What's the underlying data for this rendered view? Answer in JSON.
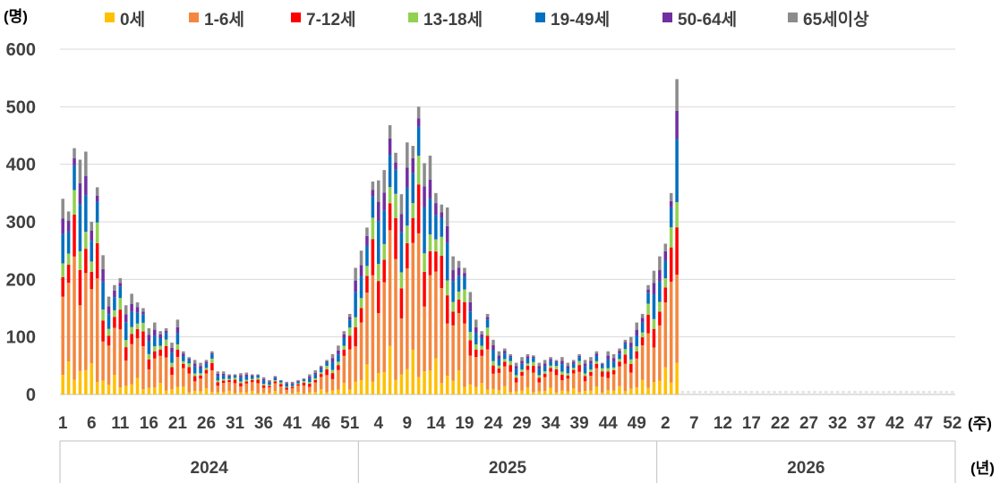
{
  "chart_data": {
    "type": "bar",
    "stacked": true,
    "y_unit_label": "(명)",
    "x_unit_label": "(주)",
    "year_unit_label": "(년)",
    "ylim": [
      0,
      600
    ],
    "yticks": [
      0,
      100,
      200,
      300,
      400,
      500,
      600
    ],
    "grid": true,
    "legend_position": "top",
    "series": [
      {
        "name": "0세",
        "color": "#FFC000"
      },
      {
        "name": "1-6세",
        "color": "#F4873F"
      },
      {
        "name": "7-12세",
        "color": "#FF0000"
      },
      {
        "name": "13-18세",
        "color": "#92D050"
      },
      {
        "name": "19-49세",
        "color": "#0070C0"
      },
      {
        "name": "50-64세",
        "color": "#7030A0"
      },
      {
        "name": "65세이상",
        "color": "#8C8C8C"
      }
    ],
    "years": [
      {
        "label": "2024",
        "weeks": 52
      },
      {
        "label": "2025",
        "weeks": 52
      },
      {
        "label": "2026",
        "weeks": 52
      }
    ],
    "x_tick_labels": [
      "1",
      "6",
      "11",
      "16",
      "21",
      "26",
      "31",
      "36",
      "41",
      "46",
      "51",
      "4",
      "9",
      "14",
      "19",
      "24",
      "29",
      "34",
      "39",
      "44",
      "49",
      "2",
      "7",
      "12",
      "17",
      "22",
      "27",
      "32",
      "37",
      "42",
      "47",
      "52"
    ],
    "totals_2024": [
      340,
      318,
      428,
      408,
      422,
      300,
      360,
      242,
      170,
      190,
      202,
      155,
      175,
      160,
      150,
      115,
      125,
      110,
      115,
      90,
      130,
      75,
      65,
      60,
      55,
      60,
      75,
      40,
      40,
      35,
      35,
      37,
      38,
      35,
      35,
      30,
      25,
      32,
      25,
      22,
      22,
      25,
      28,
      35,
      42,
      50,
      60,
      70,
      85,
      110,
      140,
      220
    ],
    "totals_2025": [
      250,
      290,
      370,
      372,
      390,
      468,
      420,
      348,
      438,
      432,
      500,
      402,
      415,
      350,
      330,
      325,
      240,
      232,
      220,
      178,
      130,
      110,
      140,
      95,
      75,
      80,
      70,
      55,
      65,
      70,
      68,
      55,
      60,
      65,
      60,
      65,
      55,
      60,
      70,
      60,
      65,
      75,
      55,
      75,
      70,
      80,
      95,
      100,
      125,
      140,
      190,
      215
    ],
    "totals_2026": [
      240,
      262,
      350,
      548
    ],
    "shares": [
      [
        0.1,
        0.4,
        0.1,
        0.07,
        0.15,
        0.08,
        0.1
      ],
      [
        0.18,
        0.43,
        0.1,
        0.06,
        0.12,
        0.06,
        0.05
      ],
      [
        0.06,
        0.5,
        0.17,
        0.1,
        0.1,
        0.03,
        0.04
      ],
      [
        0.1,
        0.28,
        0.15,
        0.08,
        0.2,
        0.09,
        0.1
      ]
    ]
  }
}
